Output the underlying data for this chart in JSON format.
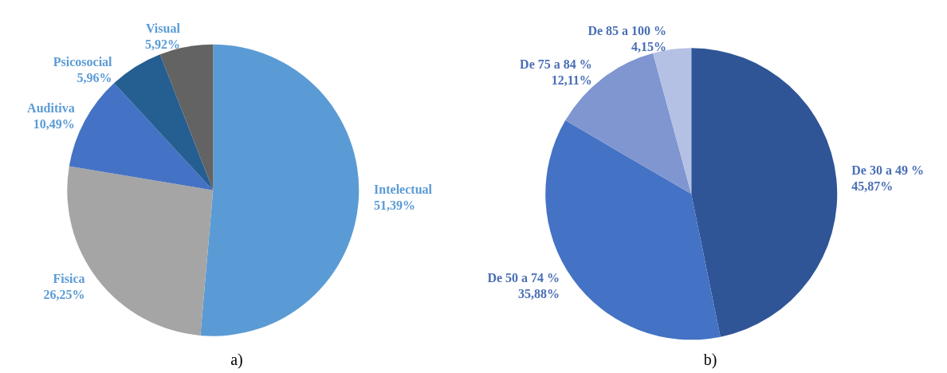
{
  "chart_data": [
    {
      "type": "pie",
      "title": "a)",
      "categories": [
        "Intelectual",
        "Fisica",
        "Auditiva",
        "Psicosocial",
        "Visual"
      ],
      "values": [
        51.39,
        26.25,
        10.49,
        5.96,
        5.92
      ],
      "value_labels": [
        "51,39%",
        "26,25%",
        "10,49%",
        "5,96%",
        "5,92%"
      ],
      "colors": [
        "#5b9bd5",
        "#a5a5a5",
        "#4472c4",
        "#255e91",
        "#636363"
      ]
    },
    {
      "type": "pie",
      "title": "b)",
      "categories": [
        "De 30 a 49 %",
        "De 50 a 74 %",
        "De 75 a 84 %",
        "De 85 a 100 %"
      ],
      "values": [
        45.87,
        35.88,
        12.11,
        4.15
      ],
      "value_labels": [
        "45,87%",
        "35,88%",
        "12,11%",
        "4,15%"
      ],
      "colors": [
        "#2f5597",
        "#4472c4",
        "#7f96d0",
        "#b4c1e4"
      ]
    }
  ]
}
